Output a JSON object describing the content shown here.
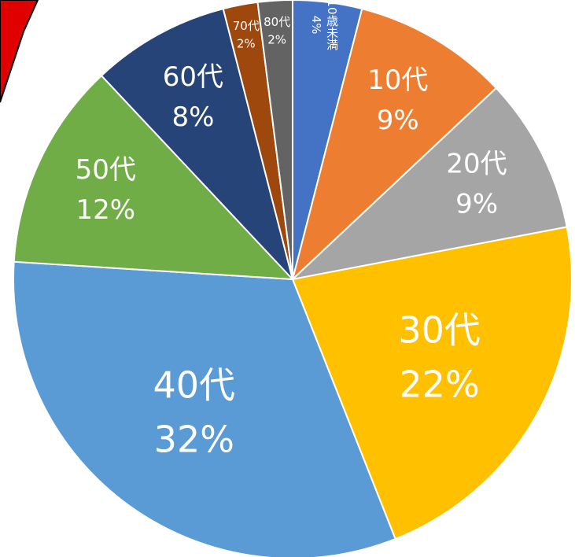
{
  "chart_data": {
    "type": "pie",
    "categories": [
      "10歳未満",
      "10代",
      "20代",
      "30代",
      "40代",
      "50代",
      "60代",
      "70代",
      "80代"
    ],
    "values": [
      4,
      9,
      9,
      22,
      32,
      12,
      8,
      2,
      2
    ],
    "value_labels": [
      "4%",
      "9%",
      "9%",
      "22%",
      "32%",
      "12%",
      "8%",
      "2%",
      "2%"
    ],
    "colors": [
      "#4472c4",
      "#ed7d31",
      "#a5a5a5",
      "#ffc000",
      "#5b9bd5",
      "#70ad47",
      "#264478",
      "#9e480e",
      "#636363"
    ]
  }
}
